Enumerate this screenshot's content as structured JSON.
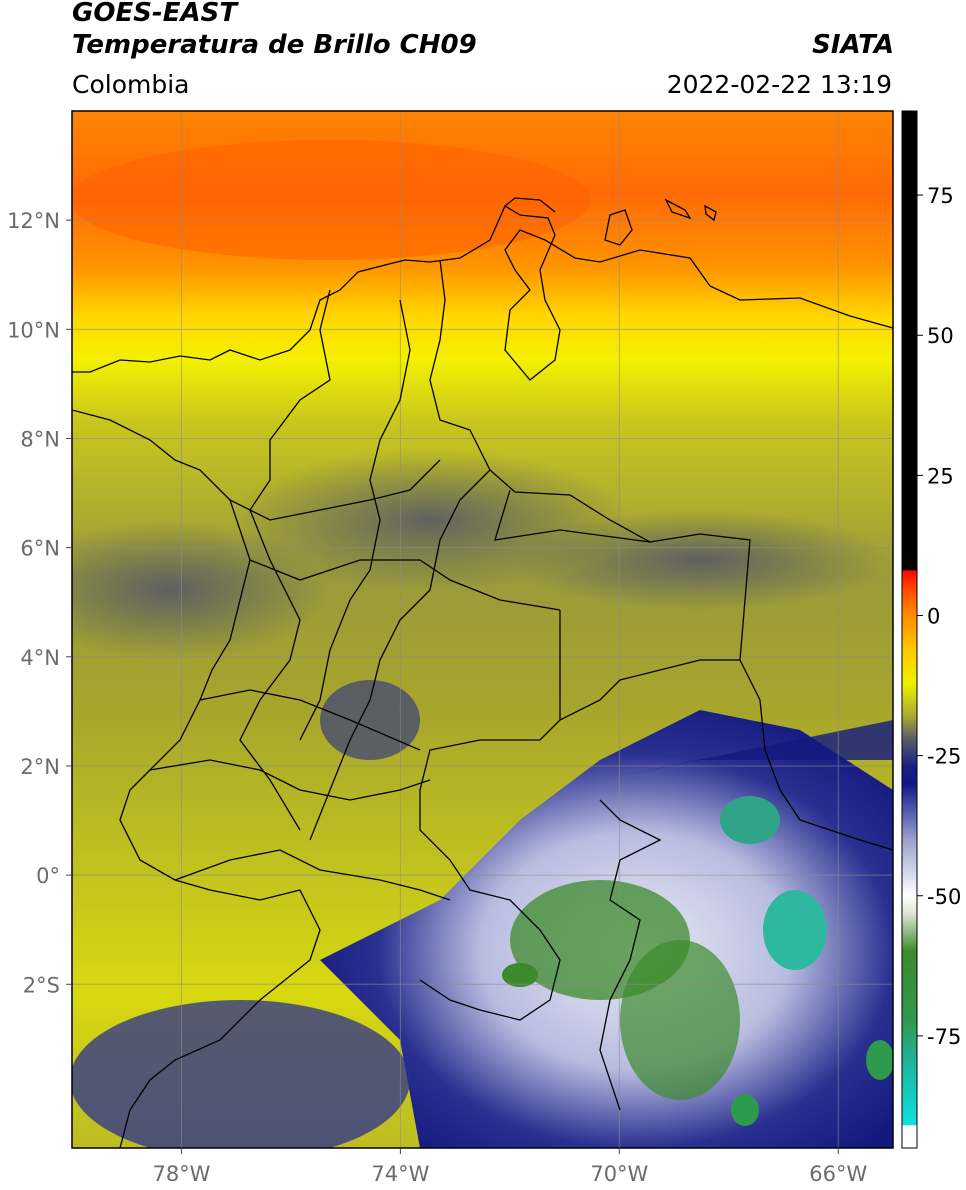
{
  "header": {
    "satellite": "GOES-EAST",
    "product": "Temperatura de Brillo CH09",
    "agency": "SIATA",
    "region": "Colombia",
    "datetime": "2022-02-22 13:19"
  },
  "map": {
    "lon_range": [
      -80,
      -65
    ],
    "lat_range": [
      -5,
      14
    ],
    "lon_ticks": [
      {
        "value": -78,
        "label": "78°W"
      },
      {
        "value": -74,
        "label": "74°W"
      },
      {
        "value": -70,
        "label": "70°W"
      },
      {
        "value": -66,
        "label": "66°W"
      }
    ],
    "lat_ticks": [
      {
        "value": 12,
        "label": "12°N"
      },
      {
        "value": 10,
        "label": "10°N"
      },
      {
        "value": 8,
        "label": "8°N"
      },
      {
        "value": 6,
        "label": "6°N"
      },
      {
        "value": 4,
        "label": "4°N"
      },
      {
        "value": 2,
        "label": "2°N"
      },
      {
        "value": 0,
        "label": "0°"
      },
      {
        "value": -2,
        "label": "2°S"
      }
    ],
    "grid": true
  },
  "colorbar": {
    "range": [
      -95,
      90
    ],
    "ticks": [
      {
        "value": 75,
        "label": "75"
      },
      {
        "value": 50,
        "label": "50"
      },
      {
        "value": 25,
        "label": "25"
      },
      {
        "value": 0,
        "label": "0"
      },
      {
        "value": -25,
        "label": "-25"
      },
      {
        "value": -50,
        "label": "-50"
      },
      {
        "value": -75,
        "label": "-75"
      }
    ],
    "stops": [
      {
        "value": -95,
        "color": "#ffffff"
      },
      {
        "value": -91,
        "color": "#ffffff"
      },
      {
        "value": -90.9,
        "color": "#10e0e0"
      },
      {
        "value": -80,
        "color": "#1fb5a0"
      },
      {
        "value": -72,
        "color": "#2e9a4e"
      },
      {
        "value": -60,
        "color": "#3d8a2c"
      },
      {
        "value": -53,
        "color": "#dfe8d8"
      },
      {
        "value": -50,
        "color": "#ffffff"
      },
      {
        "value": -40,
        "color": "#9aa0d0"
      },
      {
        "value": -30,
        "color": "#101888"
      },
      {
        "value": -27,
        "color": "#1a2080"
      },
      {
        "value": -22,
        "color": "#5a5c6a"
      },
      {
        "value": -18,
        "color": "#a8aa30"
      },
      {
        "value": -12,
        "color": "#f0f000"
      },
      {
        "value": -6,
        "color": "#ffc800"
      },
      {
        "value": 0,
        "color": "#ff8c00"
      },
      {
        "value": 5,
        "color": "#ff4400"
      },
      {
        "value": 8,
        "color": "#ff0000"
      },
      {
        "value": 8.1,
        "color": "#000000"
      },
      {
        "value": 90,
        "color": "#000000"
      }
    ]
  },
  "colors": {
    "warm_band": "#ff7a10",
    "land_olive": "#a7a62c",
    "cold_cloud": "#1a2080",
    "deep_convection": "#2e9a4e"
  }
}
